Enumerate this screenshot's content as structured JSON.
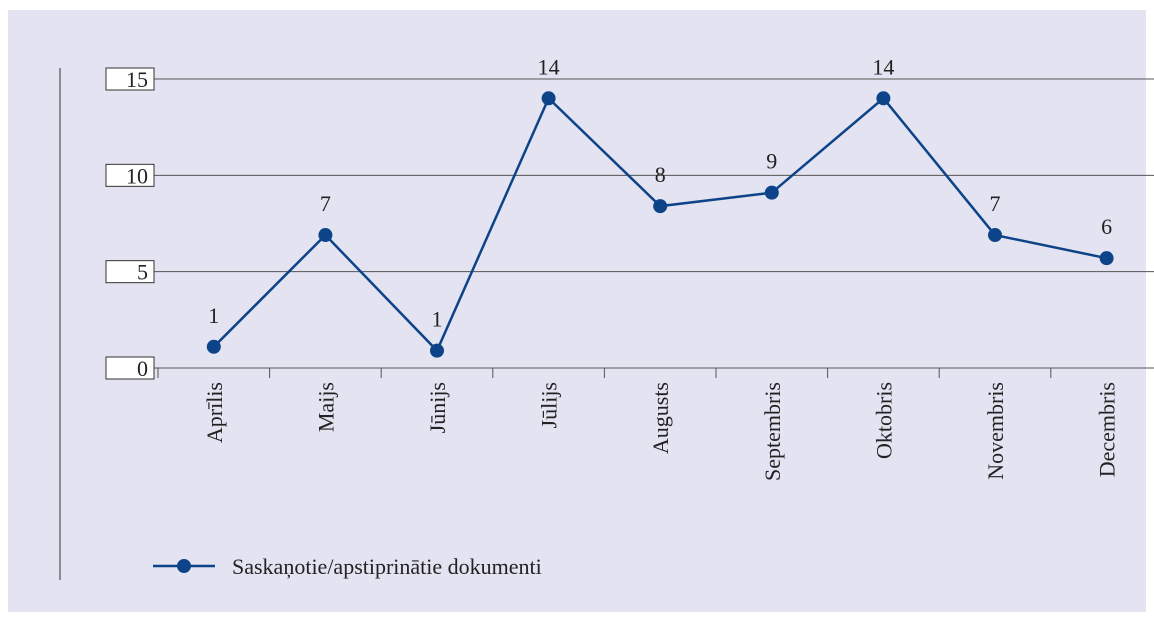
{
  "chart_data": {
    "type": "line",
    "categories": [
      "Aprīlis",
      "Maijs",
      "Jūnijs",
      "Jūlijs",
      "Augusts",
      "Septembris",
      "Oktobris",
      "Novembris",
      "Decembris"
    ],
    "series": [
      {
        "name": "Saskaņotie/apstiprinātie dokumenti",
        "color": "#0d4388",
        "values": [
          1.1,
          6.9,
          0.9,
          14.0,
          8.4,
          9.1,
          14.0,
          6.9,
          5.7
        ],
        "value_labels": [
          "1",
          "7",
          "1",
          "14",
          "8",
          "9",
          "14",
          "7",
          "6"
        ]
      }
    ],
    "ylim": [
      0,
      15
    ],
    "yticks": [
      0,
      5,
      10,
      15
    ],
    "grid": true
  }
}
